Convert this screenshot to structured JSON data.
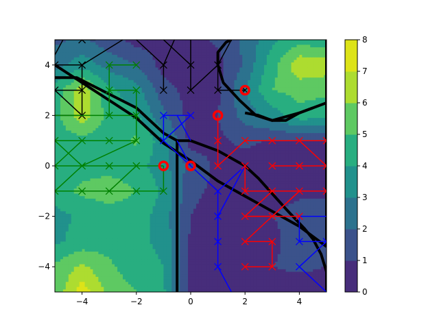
{
  "chart_data": {
    "type": "contour",
    "xlim": [
      -5,
      5
    ],
    "ylim": [
      -5,
      5
    ],
    "x_ticks": [
      -4,
      -2,
      0,
      2,
      4
    ],
    "y_ticks": [
      -4,
      -2,
      0,
      2,
      4
    ],
    "x_tick_labels": [
      "−4",
      "−2",
      "0",
      "2",
      "4"
    ],
    "y_tick_labels": [
      "−4",
      "−2",
      "0",
      "2",
      "4"
    ],
    "colorbar": {
      "levels": [
        0,
        1,
        2,
        3,
        4,
        5,
        6,
        7,
        8
      ],
      "tick_labels": [
        "0",
        "1",
        "2",
        "3",
        "4",
        "5",
        "6",
        "7",
        "8"
      ],
      "colors": [
        "#472d7b",
        "#3b528b",
        "#2c728e",
        "#21918c",
        "#28ae80",
        "#5ec962",
        "#addc30",
        "#dde318"
      ]
    },
    "grid_x": [
      -5,
      -4,
      -3,
      -2,
      -1,
      0,
      1,
      2,
      3,
      4,
      5
    ],
    "grid_y": [
      -5,
      -4,
      -3,
      -2,
      -1,
      0,
      1,
      2,
      3,
      4,
      5
    ],
    "z": [
      [
        5.2,
        7.6,
        5.6,
        5.0,
        4.2,
        0.6,
        0.4,
        0.4,
        0.4,
        0.4,
        0.4
      ],
      [
        5.2,
        6.2,
        5.2,
        4.4,
        4.0,
        0.6,
        0.4,
        0.8,
        1.0,
        1.2,
        1.0
      ],
      [
        3.8,
        4.4,
        4.6,
        4.2,
        3.8,
        0.8,
        0.6,
        0.6,
        0.8,
        1.4,
        1.2
      ],
      [
        3.6,
        4.2,
        4.4,
        4.4,
        3.6,
        1.0,
        0.6,
        0.8,
        1.0,
        1.2,
        1.0
      ],
      [
        4.6,
        5.2,
        5.6,
        5.0,
        3.8,
        1.2,
        0.8,
        0.6,
        0.8,
        0.9,
        1.0
      ],
      [
        4.2,
        4.6,
        4.6,
        4.4,
        3.4,
        1.6,
        0.8,
        0.6,
        0.6,
        0.6,
        0.8
      ],
      [
        4.6,
        4.6,
        4.4,
        5.2,
        3.4,
        0.6,
        0.8,
        1.2,
        0.9,
        0.9,
        0.9
      ],
      [
        4.6,
        6.6,
        4.6,
        4.2,
        2.2,
        0.6,
        1.0,
        2.4,
        3.4,
        4.6,
        4.4
      ],
      [
        4.4,
        6.6,
        4.2,
        3.4,
        1.4,
        0.6,
        0.8,
        3.0,
        5.0,
        5.4,
        5.2
      ],
      [
        2.6,
        3.6,
        2.6,
        2.0,
        0.6,
        0.6,
        0.6,
        2.2,
        4.6,
        6.8,
        6.6
      ],
      [
        1.8,
        2.2,
        1.4,
        0.6,
        0.6,
        0.6,
        1.2,
        2.2,
        3.8,
        4.6,
        4.2
      ]
    ],
    "boundaries": [
      [
        [
          -5,
          4
        ],
        [
          -2,
          1.9
        ],
        [
          -1,
          0.9
        ],
        [
          0,
          0.2
        ],
        [
          1,
          -0.6
        ],
        [
          2,
          -1.2
        ],
        [
          3,
          -1.8
        ],
        [
          4,
          -2.4
        ],
        [
          5,
          -3.2
        ]
      ],
      [
        [
          -5,
          3.5
        ],
        [
          -4.2,
          3.5
        ],
        [
          -2,
          2.3
        ],
        [
          -1,
          1.3
        ],
        [
          -0.5,
          1.0
        ],
        [
          0,
          1.0
        ],
        [
          1,
          0.6
        ],
        [
          2,
          0
        ],
        [
          2.5,
          -0.5
        ],
        [
          3,
          -1.1
        ],
        [
          3.5,
          -1.7
        ],
        [
          4.2,
          -2.5
        ],
        [
          4.5,
          -2.9
        ],
        [
          4.8,
          -3.5
        ],
        [
          5,
          -4.2
        ],
        [
          5,
          -5
        ]
      ],
      [
        [
          -0.5,
          1.0
        ],
        [
          -0.5,
          -5
        ]
      ],
      [
        [
          5,
          -3.2
        ],
        [
          5,
          5
        ]
      ],
      [
        [
          5,
          2.5
        ],
        [
          4,
          2.1
        ],
        [
          3,
          1.8
        ],
        [
          2.4,
          2.0
        ],
        [
          1.8,
          2.6
        ],
        [
          1.2,
          3.3
        ],
        [
          1.0,
          4.0
        ],
        [
          1.0,
          4.5
        ],
        [
          1.3,
          4.9
        ],
        [
          1.5,
          5
        ]
      ],
      [
        [
          2.0,
          2.1
        ],
        [
          2.5,
          2.0
        ],
        [
          3.0,
          1.8
        ],
        [
          3.5,
          1.8
        ],
        [
          4.0,
          2.1
        ],
        [
          4.5,
          2.3
        ]
      ]
    ],
    "series": [
      {
        "color": "#000000",
        "segments": [
          [
            [
              -5,
              4
            ],
            [
              -4,
              4
            ]
          ],
          [
            [
              -4,
              4
            ],
            [
              -4,
              3
            ]
          ],
          [
            [
              -5,
              3
            ],
            [
              -4,
              3
            ]
          ],
          [
            [
              -4,
              3
            ],
            [
              -4,
              2
            ]
          ],
          [
            [
              -5,
              2
            ],
            [
              -4,
              2
            ]
          ],
          [
            [
              -4,
              2
            ],
            [
              -5,
              3
            ]
          ],
          [
            [
              -5,
              5
            ],
            [
              -3.5,
              5
            ]
          ],
          [
            [
              -4,
              4
            ],
            [
              -2.5,
              5
            ]
          ],
          [
            [
              -5,
              4.4
            ],
            [
              -4.7,
              5
            ]
          ],
          [
            [
              -2,
              5
            ],
            [
              -1,
              4
            ]
          ],
          [
            [
              -1,
              4
            ],
            [
              -1,
              3
            ]
          ],
          [
            [
              -1,
              4
            ],
            [
              -0.6,
              5
            ]
          ],
          [
            [
              0,
              5
            ],
            [
              0,
              4
            ]
          ],
          [
            [
              0,
              4
            ],
            [
              0,
              3
            ]
          ],
          [
            [
              0,
              3
            ],
            [
              1,
              4
            ]
          ],
          [
            [
              1,
              4
            ],
            [
              1,
              3
            ]
          ],
          [
            [
              1,
              4
            ],
            [
              1.5,
              5
            ]
          ],
          [
            [
              1,
              3
            ],
            [
              2,
              3
            ]
          ],
          [
            [
              -1,
              5
            ],
            [
              0,
              4
            ]
          ]
        ],
        "markers": [
          [
            -5,
            4
          ],
          [
            -4,
            4
          ],
          [
            -5,
            3
          ],
          [
            -4,
            3
          ],
          [
            -4,
            2
          ],
          [
            -4,
            5
          ],
          [
            -1,
            4
          ],
          [
            -1,
            3
          ],
          [
            0,
            4
          ],
          [
            0,
            3
          ],
          [
            1,
            4
          ],
          [
            1,
            3
          ],
          [
            2,
            3
          ]
        ]
      },
      {
        "color": "#008000",
        "segments": [
          [
            [
              -3,
              4
            ],
            [
              -2,
              4
            ]
          ],
          [
            [
              -3,
              4
            ],
            [
              -3,
              2
            ]
          ],
          [
            [
              -3,
              3
            ],
            [
              -2,
              3
            ]
          ],
          [
            [
              -3,
              2
            ],
            [
              -2,
              2
            ]
          ],
          [
            [
              -2,
              3
            ],
            [
              -2,
              1
            ]
          ],
          [
            [
              -5,
              2
            ],
            [
              -3,
              2
            ]
          ],
          [
            [
              -5,
              1
            ],
            [
              -2,
              1
            ]
          ],
          [
            [
              -4,
              1
            ],
            [
              -5,
              0
            ]
          ],
          [
            [
              -4,
              0
            ],
            [
              -2,
              1
            ]
          ],
          [
            [
              -5,
              0
            ],
            [
              -1,
              0
            ]
          ],
          [
            [
              -5,
              -1
            ],
            [
              -1,
              -1
            ]
          ],
          [
            [
              -1,
              0
            ],
            [
              -1,
              -1
            ]
          ],
          [
            [
              -4,
              0
            ],
            [
              -5,
              -1
            ]
          ],
          [
            [
              -3,
              -1
            ],
            [
              -2,
              0
            ]
          ],
          [
            [
              -5,
              1
            ],
            [
              -4,
              0
            ]
          ]
        ],
        "markers": [
          [
            -3,
            4
          ],
          [
            -2,
            4
          ],
          [
            -3,
            3
          ],
          [
            -2,
            3
          ],
          [
            -3,
            2
          ],
          [
            -2,
            2
          ],
          [
            -2,
            1
          ],
          [
            -5,
            1
          ],
          [
            -4,
            1
          ],
          [
            -3,
            1
          ],
          [
            -4,
            0
          ],
          [
            -3,
            0
          ],
          [
            -2,
            0
          ],
          [
            -5,
            -1
          ],
          [
            -4,
            -1
          ],
          [
            -3,
            -1
          ],
          [
            -2,
            -1
          ],
          [
            -1,
            -1
          ],
          [
            -5,
            0
          ]
        ]
      },
      {
        "color": "#0000ff",
        "segments": [
          [
            [
              -1,
              2
            ],
            [
              0,
              2
            ]
          ],
          [
            [
              -1,
              2
            ],
            [
              -1,
              1
            ]
          ],
          [
            [
              0,
              2
            ],
            [
              -1,
              1
            ]
          ],
          [
            [
              -1,
              1
            ],
            [
              0,
              0
            ]
          ],
          [
            [
              -0.5,
              1
            ],
            [
              0,
              0
            ]
          ],
          [
            [
              0,
              0
            ],
            [
              1,
              -1
            ]
          ],
          [
            [
              1,
              -1
            ],
            [
              2,
              0
            ]
          ],
          [
            [
              2,
              0
            ],
            [
              1,
              -2
            ]
          ],
          [
            [
              1,
              -1
            ],
            [
              1,
              -4
            ]
          ],
          [
            [
              1,
              -2
            ],
            [
              1,
              -3
            ]
          ],
          [
            [
              1,
              -4
            ],
            [
              1.5,
              -5
            ]
          ],
          [
            [
              4,
              -2
            ],
            [
              5,
              -2
            ]
          ],
          [
            [
              4,
              -2
            ],
            [
              4,
              -3
            ]
          ],
          [
            [
              4,
              -3
            ],
            [
              5,
              -3
            ]
          ],
          [
            [
              4,
              -4
            ],
            [
              5,
              -3
            ]
          ],
          [
            [
              4,
              -4
            ],
            [
              5,
              -5
            ]
          ],
          [
            [
              -0.5,
              2
            ],
            [
              0,
              1
            ]
          ]
        ],
        "markers": [
          [
            -1,
            2
          ],
          [
            0,
            2
          ],
          [
            -1,
            1
          ],
          [
            1,
            -1
          ],
          [
            2,
            0
          ],
          [
            1,
            -2
          ],
          [
            1,
            -3
          ],
          [
            1,
            -4
          ],
          [
            4,
            -2
          ],
          [
            4,
            -3
          ],
          [
            5,
            -3
          ],
          [
            4,
            -4
          ]
        ]
      },
      {
        "color": "#ff0000",
        "segments": [
          [
            [
              1,
              2
            ],
            [
              1,
              0
            ]
          ],
          [
            [
              1,
              0
            ],
            [
              2,
              1
            ]
          ],
          [
            [
              2,
              1
            ],
            [
              5,
              1
            ]
          ],
          [
            [
              4,
              1
            ],
            [
              5,
              0
            ]
          ],
          [
            [
              3,
              0
            ],
            [
              5,
              0
            ]
          ],
          [
            [
              2,
              0
            ],
            [
              2,
              -1
            ]
          ],
          [
            [
              2,
              -1
            ],
            [
              5,
              -1
            ]
          ],
          [
            [
              2,
              -2
            ],
            [
              4,
              -2
            ]
          ],
          [
            [
              3,
              -1
            ],
            [
              2,
              -2
            ]
          ],
          [
            [
              4,
              -1
            ],
            [
              2,
              -3
            ]
          ],
          [
            [
              2,
              -3
            ],
            [
              3,
              -3
            ]
          ],
          [
            [
              3,
              -3
            ],
            [
              3,
              -4
            ]
          ],
          [
            [
              2,
              -4
            ],
            [
              3,
              -4
            ]
          ],
          [
            [
              2,
              -2
            ],
            [
              3,
              -2
            ]
          ],
          [
            [
              4,
              -1
            ],
            [
              3,
              -2
            ]
          ]
        ],
        "markers": [
          [
            1,
            1
          ],
          [
            1,
            0
          ],
          [
            2,
            1
          ],
          [
            3,
            1
          ],
          [
            4,
            1
          ],
          [
            5,
            1
          ],
          [
            3,
            0
          ],
          [
            4,
            0
          ],
          [
            5,
            0
          ],
          [
            2,
            0
          ],
          [
            2,
            -1
          ],
          [
            3,
            -1
          ],
          [
            4,
            -1
          ],
          [
            5,
            -1
          ],
          [
            2,
            -2
          ],
          [
            3,
            -2
          ],
          [
            4,
            -2
          ],
          [
            2,
            -3
          ],
          [
            3,
            -3
          ],
          [
            2,
            -4
          ],
          [
            3,
            -4
          ]
        ]
      }
    ],
    "circles": [
      [
        -1,
        0
      ],
      [
        0,
        0
      ],
      [
        1,
        2
      ],
      [
        2,
        3
      ]
    ]
  }
}
